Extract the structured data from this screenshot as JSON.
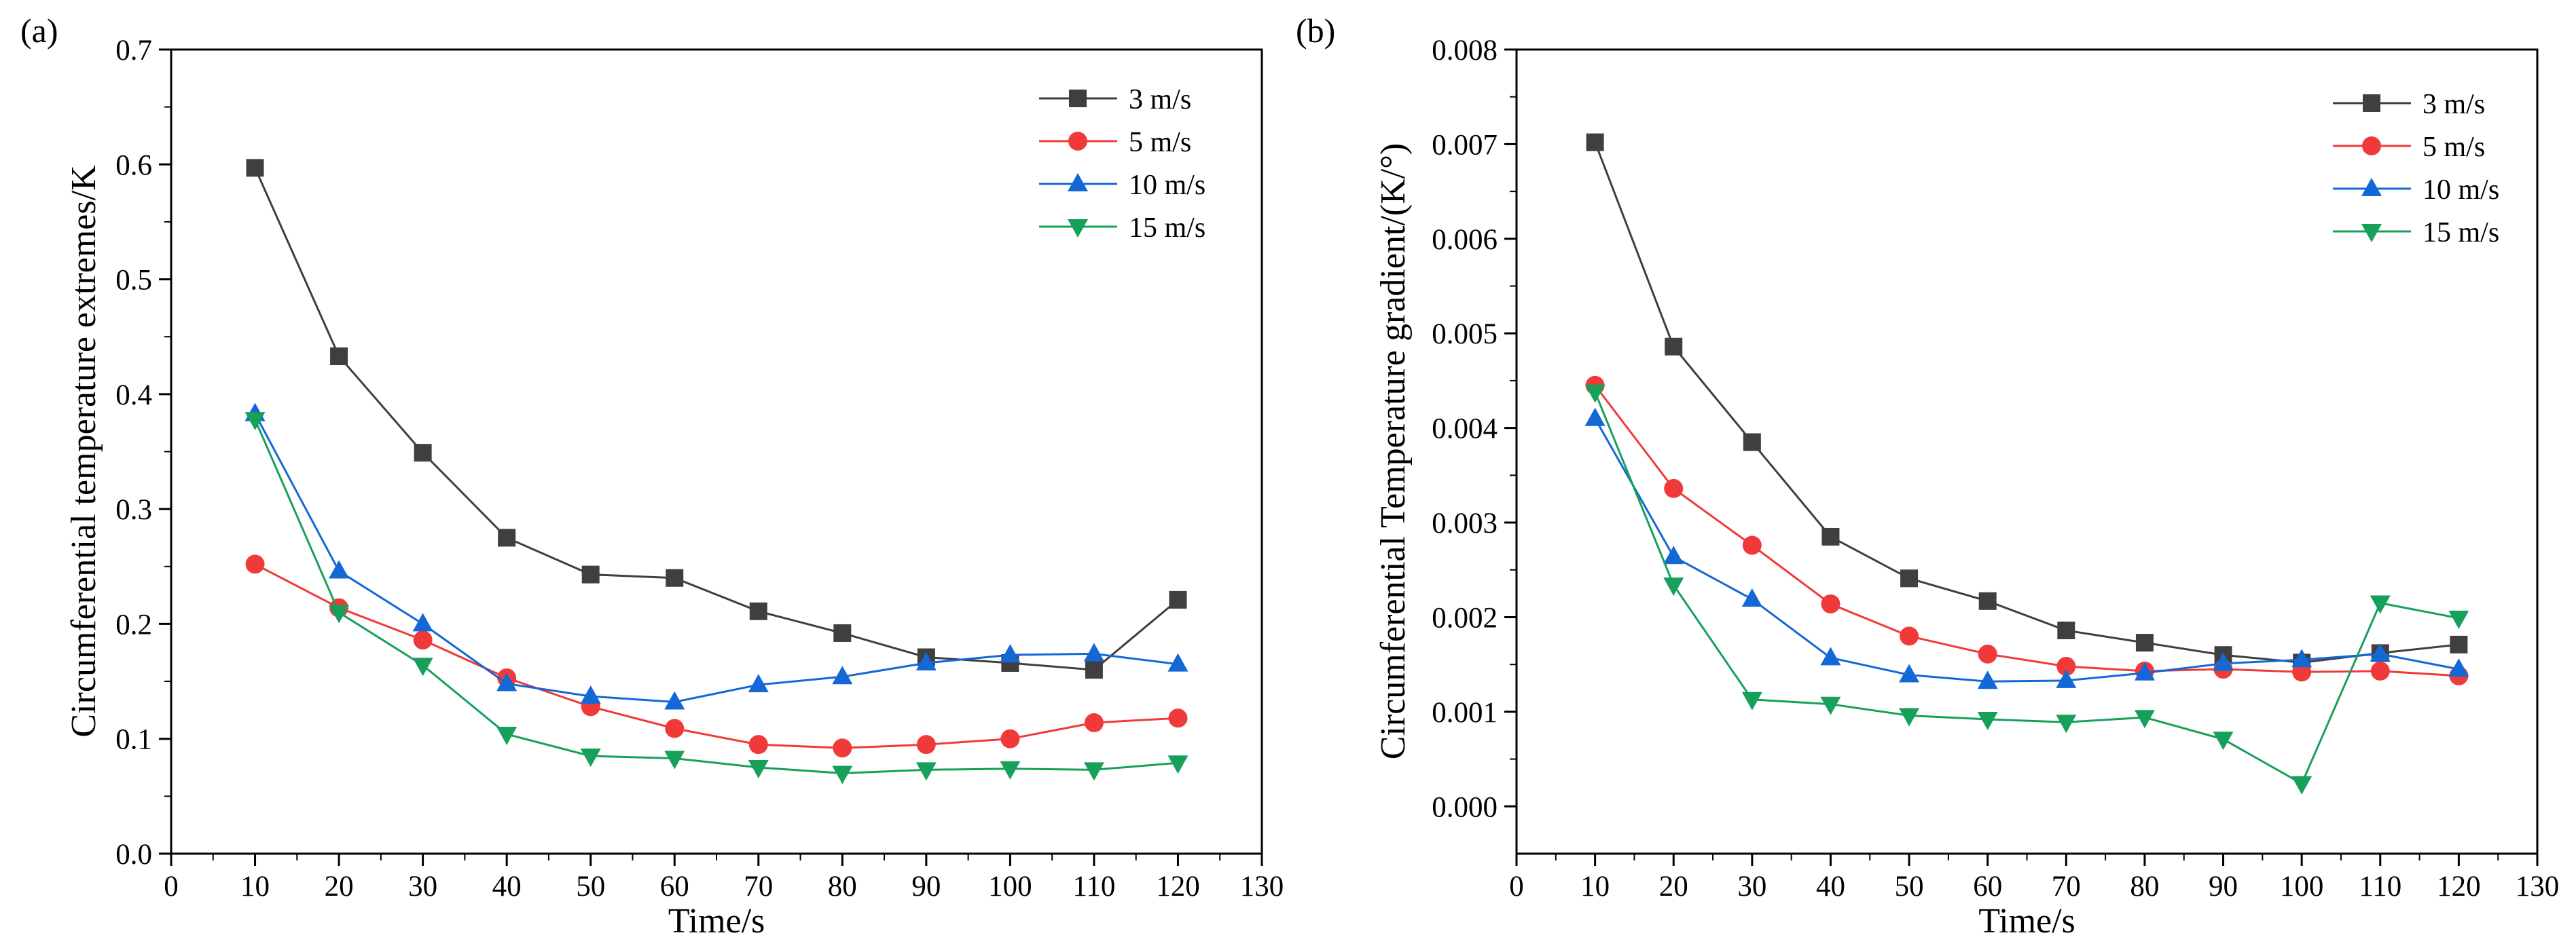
{
  "chart_data": [
    {
      "panel_label": "(a)",
      "type": "line",
      "title": "",
      "xlabel": "Time/s",
      "ylabel": "Circumferential temperature extremes/K",
      "xlim": [
        0,
        130
      ],
      "ylim": [
        0.0,
        0.7
      ],
      "xticks": [
        0,
        10,
        20,
        30,
        40,
        50,
        60,
        70,
        80,
        90,
        100,
        110,
        120,
        130
      ],
      "yticks": [
        0.0,
        0.1,
        0.2,
        0.3,
        0.4,
        0.5,
        0.6,
        0.7
      ],
      "xtick_labels": [
        "0",
        "10",
        "20",
        "30",
        "40",
        "50",
        "60",
        "70",
        "80",
        "90",
        "100",
        "110",
        "120",
        "130"
      ],
      "ytick_labels": [
        "0.0",
        "0.1",
        "0.2",
        "0.3",
        "0.4",
        "0.5",
        "0.6",
        "0.7"
      ],
      "legend_position": "top-right",
      "x": [
        10,
        20,
        30,
        40,
        50,
        60,
        70,
        80,
        90,
        100,
        110,
        120
      ],
      "series": [
        {
          "name": "3 m/s",
          "color": "#3f3f3f",
          "marker": "square",
          "values": [
            0.597,
            0.433,
            0.349,
            0.275,
            0.243,
            0.24,
            0.211,
            0.192,
            0.171,
            0.166,
            0.16,
            0.221
          ]
        },
        {
          "name": "5 m/s",
          "color": "#f03a3a",
          "marker": "circle",
          "values": [
            0.252,
            0.214,
            0.186,
            0.153,
            0.128,
            0.109,
            0.095,
            0.092,
            0.095,
            0.1,
            0.114,
            0.118
          ]
        },
        {
          "name": "10 m/s",
          "color": "#1368d6",
          "marker": "triangle-up",
          "values": [
            0.383,
            0.246,
            0.2,
            0.148,
            0.137,
            0.132,
            0.147,
            0.154,
            0.166,
            0.173,
            0.174,
            0.165
          ]
        },
        {
          "name": "15 m/s",
          "color": "#17a05a",
          "marker": "triangle-down",
          "values": [
            0.378,
            0.21,
            0.164,
            0.104,
            0.085,
            0.083,
            0.075,
            0.07,
            0.073,
            0.074,
            0.073,
            0.079
          ]
        }
      ]
    },
    {
      "panel_label": "(b)",
      "type": "line",
      "title": "",
      "xlabel": "Time/s",
      "ylabel": "Circumferential Temperature gradient/(K/°)",
      "xlim": [
        0,
        130
      ],
      "ylim": [
        -0.0005,
        0.008
      ],
      "xticks": [
        0,
        10,
        20,
        30,
        40,
        50,
        60,
        70,
        80,
        90,
        100,
        110,
        120,
        130
      ],
      "yticks": [
        0.0,
        0.001,
        0.002,
        0.003,
        0.004,
        0.005,
        0.006,
        0.007,
        0.008
      ],
      "xtick_labels": [
        "0",
        "10",
        "20",
        "30",
        "40",
        "50",
        "60",
        "70",
        "80",
        "90",
        "100",
        "110",
        "120",
        "130"
      ],
      "ytick_labels": [
        "0.000",
        "0.001",
        "0.002",
        "0.003",
        "0.004",
        "0.005",
        "0.006",
        "0.007",
        "0.008"
      ],
      "legend_position": "top-right",
      "x": [
        10,
        20,
        30,
        40,
        50,
        60,
        70,
        80,
        90,
        100,
        110,
        120
      ],
      "series": [
        {
          "name": "3 m/s",
          "color": "#3f3f3f",
          "marker": "square",
          "values": [
            0.00702,
            0.00486,
            0.00385,
            0.00285,
            0.00241,
            0.00217,
            0.00186,
            0.00173,
            0.0016,
            0.00152,
            0.00162,
            0.00171
          ]
        },
        {
          "name": "5 m/s",
          "color": "#f03a3a",
          "marker": "circle",
          "values": [
            0.00445,
            0.00336,
            0.00276,
            0.00214,
            0.0018,
            0.00161,
            0.00148,
            0.00143,
            0.00145,
            0.00142,
            0.00143,
            0.00138
          ]
        },
        {
          "name": "10 m/s",
          "color": "#1368d6",
          "marker": "triangle-up",
          "values": [
            0.0041,
            0.00264,
            0.00219,
            0.00157,
            0.00139,
            0.00132,
            0.00133,
            0.00141,
            0.00151,
            0.00155,
            0.00161,
            0.00145
          ]
        },
        {
          "name": "15 m/s",
          "color": "#17a05a",
          "marker": "triangle-down",
          "values": [
            0.00438,
            0.00234,
            0.00113,
            0.00108,
            0.00096,
            0.00092,
            0.00089,
            0.00094,
            0.00071,
            0.00024,
            0.00215,
            0.00199
          ]
        }
      ]
    }
  ]
}
